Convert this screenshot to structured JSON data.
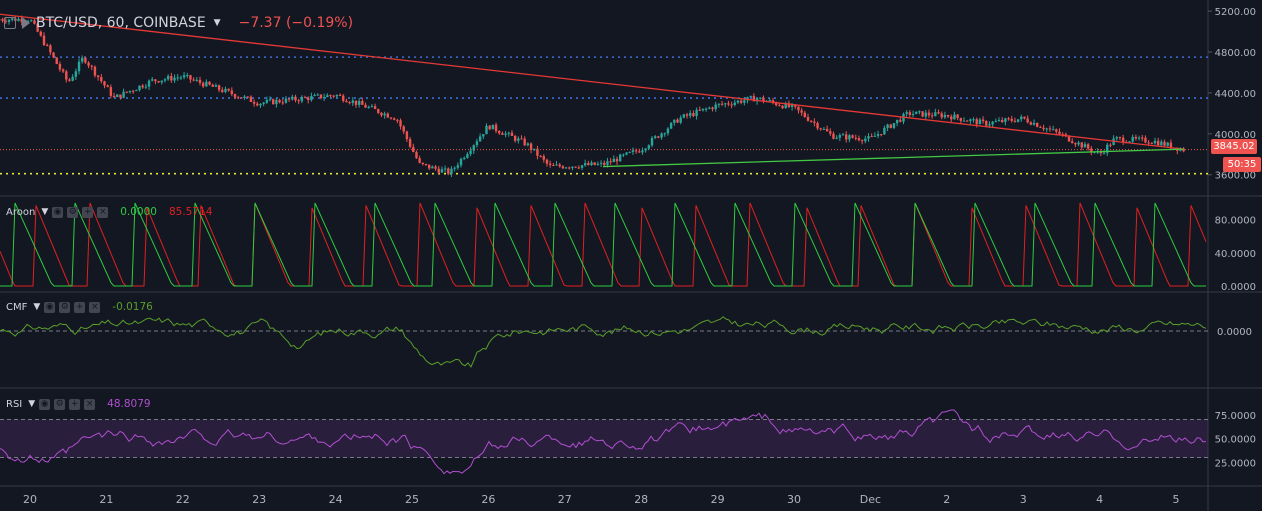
{
  "header": {
    "symbol": "BTC/USD, 60, COINBASE",
    "change": "−7.37 (−0.19%)"
  },
  "price_axis": {
    "ticks": [
      "5200.00",
      "4800.00",
      "4400.00",
      "4000.00",
      "3600.00"
    ],
    "last_price": "3845.02",
    "countdown": "50:35"
  },
  "aroon": {
    "label": "Aroon",
    "up_value": "0.0000",
    "down_value": "85.5714",
    "ticks": [
      "80.0000",
      "40.0000",
      "0.0000"
    ]
  },
  "cmf": {
    "label": "CMF",
    "value": "-0.0176",
    "ticks": [
      "0.0000"
    ]
  },
  "rsi": {
    "label": "RSI",
    "value": "48.8079",
    "ticks": [
      "75.0000",
      "50.0000",
      "25.0000"
    ]
  },
  "time_axis": {
    "labels": [
      "20",
      "21",
      "22",
      "23",
      "24",
      "25",
      "26",
      "27",
      "28",
      "29",
      "30",
      "Dec",
      "2",
      "3",
      "4",
      "5"
    ]
  },
  "colors": {
    "background": "#131722",
    "bull": "#26a69a",
    "bear": "#ef5350",
    "trend_down": "#e53935",
    "trend_up": "#43c943",
    "resistance": "#3d6fd6",
    "support": "#e6e636",
    "aroon_up": "#2ecc40",
    "aroon_down": "#e02020",
    "cmf": "#5a9e2a",
    "rsi": "#b04fd0",
    "rsi_band": "#2a1e3d"
  },
  "icons": [
    "chart-menu-icon",
    "eye-icon",
    "settings-icon",
    "plus-icon",
    "close-icon"
  ],
  "chart_data": {
    "type": "candlestick",
    "title": "BTC/USD, 60, COINBASE",
    "x_labels": [
      "20",
      "21",
      "22",
      "23",
      "24",
      "25",
      "26",
      "27",
      "28",
      "29",
      "30",
      "Dec",
      "2",
      "3",
      "4",
      "5"
    ],
    "ylim": [
      3480,
      5240
    ],
    "key_points": [
      {
        "day": 20.0,
        "price": 5120
      },
      {
        "day": 20.5,
        "price": 4500
      },
      {
        "day": 20.7,
        "price": 4750
      },
      {
        "day": 21.1,
        "price": 4350
      },
      {
        "day": 21.6,
        "price": 4520
      },
      {
        "day": 22.0,
        "price": 4560
      },
      {
        "day": 23.0,
        "price": 4300
      },
      {
        "day": 24.0,
        "price": 4380
      },
      {
        "day": 24.8,
        "price": 4150
      },
      {
        "day": 25.1,
        "price": 3700
      },
      {
        "day": 25.5,
        "price": 3620
      },
      {
        "day": 26.0,
        "price": 4080
      },
      {
        "day": 26.5,
        "price": 3900
      },
      {
        "day": 26.8,
        "price": 3680
      },
      {
        "day": 27.5,
        "price": 3700
      },
      {
        "day": 28.0,
        "price": 3850
      },
      {
        "day": 28.5,
        "price": 4150
      },
      {
        "day": 29.0,
        "price": 4280
      },
      {
        "day": 29.5,
        "price": 4350
      },
      {
        "day": 30.0,
        "price": 4250
      },
      {
        "day": 30.5,
        "price": 3980
      },
      {
        "day": 31.0,
        "price": 3950
      },
      {
        "day": 31.5,
        "price": 4200
      },
      {
        "day": 32.0,
        "price": 4180
      },
      {
        "day": 32.5,
        "price": 4100
      },
      {
        "day": 33.0,
        "price": 4150
      },
      {
        "day": 33.5,
        "price": 3990
      },
      {
        "day": 34.0,
        "price": 3800
      },
      {
        "day": 34.2,
        "price": 3950
      },
      {
        "day": 34.7,
        "price": 3930
      },
      {
        "day": 35.1,
        "price": 3845
      }
    ],
    "trendlines": [
      {
        "name": "descending",
        "from": {
          "day": 19.6,
          "price": 5170
        },
        "to": {
          "day": 35.1,
          "price": 3850
        }
      },
      {
        "name": "ascending",
        "from": {
          "day": 27.5,
          "price": 3680
        },
        "to": {
          "day": 35.1,
          "price": 3850
        }
      }
    ],
    "horizontal_levels": {
      "resistance": [
        4750,
        4350
      ],
      "support": [
        3610
      ],
      "last": 3845.02
    },
    "aroon_range": [
      0,
      100
    ],
    "rsi_range": [
      0,
      100
    ],
    "rsi_bands": [
      70,
      30
    ]
  }
}
